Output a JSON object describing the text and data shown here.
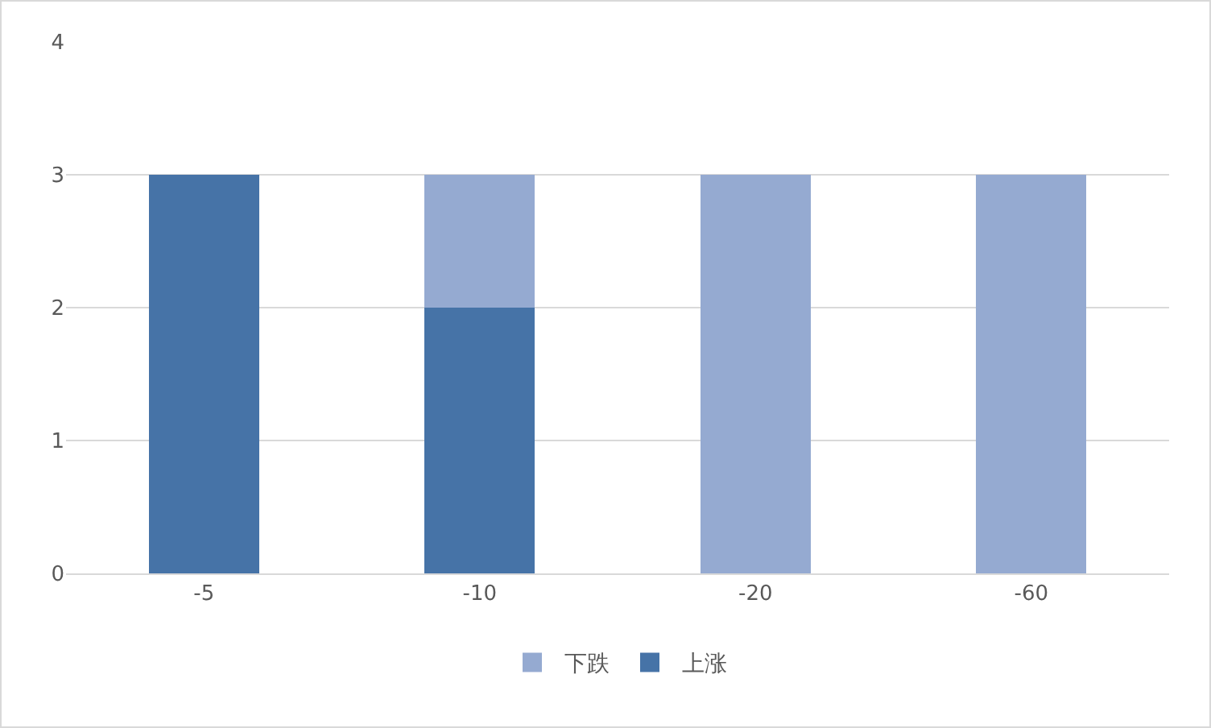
{
  "chart_data": {
    "type": "bar",
    "stacked": true,
    "categories": [
      "-5",
      "-10",
      "-20",
      "-60"
    ],
    "series": [
      {
        "name": "上涨",
        "color": "#4673a7",
        "values": [
          3,
          2,
          0,
          0
        ]
      },
      {
        "name": "下跌",
        "color": "#95aad1",
        "values": [
          0,
          1,
          3,
          3
        ]
      }
    ],
    "ylim": [
      0,
      4
    ],
    "yticks": [
      0,
      1,
      2,
      3,
      4
    ],
    "grid": "y",
    "legend": "bottom"
  }
}
